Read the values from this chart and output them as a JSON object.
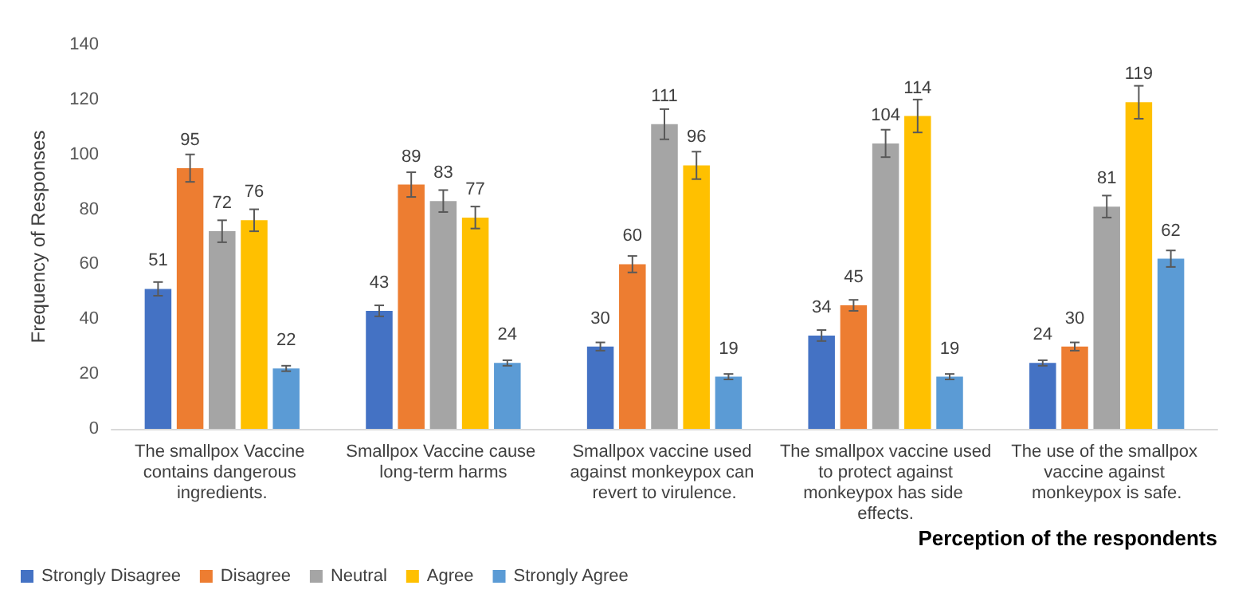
{
  "chart_data": {
    "type": "bar",
    "ylabel": "Frequency of Responses",
    "xlabel": "Perception of the respondents",
    "categories": [
      "The smallpox Vaccine contains dangerous ingredients.",
      "Smallpox Vaccine cause long-term harms",
      "Smallpox vaccine used against monkeypox can revert to virulence.",
      "The smallpox vaccine used to protect against monkeypox has side effects.",
      "The use of the smallpox vaccine against monkeypox is safe."
    ],
    "series": [
      {
        "name": "Strongly Disagree",
        "color": "#4472c4",
        "values": [
          51,
          43,
          30,
          34,
          24
        ],
        "errors": [
          2.5,
          2,
          1.5,
          2,
          1
        ]
      },
      {
        "name": "Disagree",
        "color": "#ed7d31",
        "values": [
          95,
          89,
          60,
          45,
          30
        ],
        "errors": [
          5,
          4.5,
          3,
          2,
          1.5
        ]
      },
      {
        "name": "Neutral",
        "color": "#a5a5a5",
        "values": [
          72,
          83,
          111,
          104,
          81
        ],
        "errors": [
          4,
          4,
          5.5,
          5,
          4
        ]
      },
      {
        "name": "Agree",
        "color": "#ffc000",
        "values": [
          76,
          77,
          96,
          114,
          119
        ],
        "errors": [
          4,
          4,
          5,
          6,
          6
        ]
      },
      {
        "name": "Strongly Agree",
        "color": "#5b9bd5",
        "values": [
          22,
          24,
          19,
          19,
          62
        ],
        "errors": [
          1,
          1,
          1,
          1,
          3
        ]
      }
    ],
    "ylim": [
      0,
      140
    ],
    "yticks": [
      0,
      20,
      40,
      60,
      80,
      100,
      120,
      140
    ],
    "grid": false,
    "legend": "bottom left",
    "data_labels": true
  }
}
